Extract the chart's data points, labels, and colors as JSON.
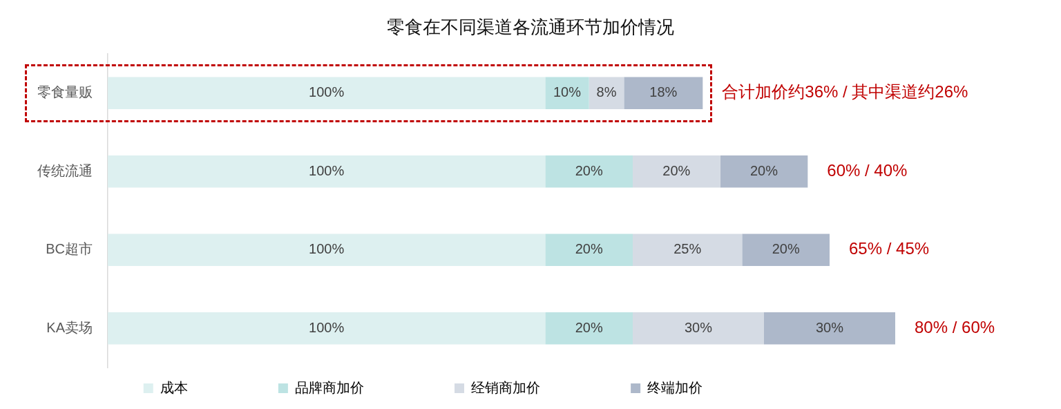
{
  "chart_data": {
    "type": "bar",
    "orientation": "horizontal",
    "stacked": true,
    "title": "零食在不同渠道各流通环节加价情况",
    "categories": [
      "零食量贩",
      "传统流通",
      "BC超市",
      "KA卖场"
    ],
    "series": [
      {
        "name": "成本",
        "color": "#ddf0f0",
        "values": [
          100,
          100,
          100,
          100
        ],
        "value_labels": [
          "100%",
          "100%",
          "100%",
          "100%"
        ]
      },
      {
        "name": "品牌商加价",
        "color": "#bde3e3",
        "values": [
          10,
          20,
          20,
          20
        ],
        "value_labels": [
          "10%",
          "20%",
          "20%",
          "20%"
        ]
      },
      {
        "name": "经销商加价",
        "color": "#d5dbe4",
        "values": [
          8,
          20,
          25,
          30
        ],
        "value_labels": [
          "8%",
          "20%",
          "25%",
          "30%"
        ]
      },
      {
        "name": "终端加价",
        "color": "#adb8ca",
        "values": [
          18,
          20,
          20,
          30
        ],
        "value_labels": [
          "18%",
          "20%",
          "20%",
          "30%"
        ]
      }
    ],
    "legend": "bottom",
    "grid": false,
    "tick_labels": "y",
    "annotations": [
      {
        "text": "合计加价约36% / 其中渠道约26%",
        "x": 136,
        "y": "零食量贩"
      },
      {
        "text": "60% / 40%",
        "x": 160,
        "y": "传统流通"
      },
      {
        "text": "65% / 45%",
        "x": 165,
        "y": "BC超市"
      },
      {
        "text": "80% / 60%",
        "x": 180,
        "y": "KA卖场"
      }
    ]
  }
}
